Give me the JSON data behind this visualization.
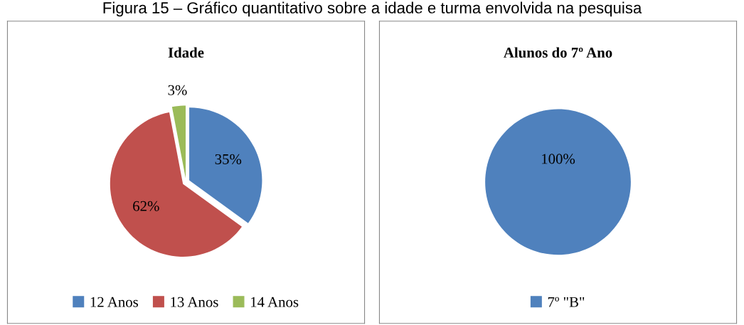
{
  "chart_data": [
    {
      "type": "pie",
      "title": "Idade",
      "categories": [
        "12 Anos",
        "13 Anos",
        "14 Anos"
      ],
      "values": [
        35,
        62,
        3
      ],
      "colors": [
        "#4f81bd",
        "#c0504d",
        "#9bbb59"
      ],
      "value_labels": [
        "35%",
        "62%",
        "3%"
      ],
      "legend": "bottom",
      "annotations": [
        "Figura 15 – Gráfico quantitativo sobre a idade e turma envolvida na pesquisa"
      ]
    },
    {
      "type": "pie",
      "title": "Alunos do 7º Ano",
      "categories": [
        "7º \"B\""
      ],
      "values": [
        100
      ],
      "colors": [
        "#4f81bd"
      ],
      "value_labels": [
        "100%"
      ],
      "legend": "bottom"
    }
  ]
}
